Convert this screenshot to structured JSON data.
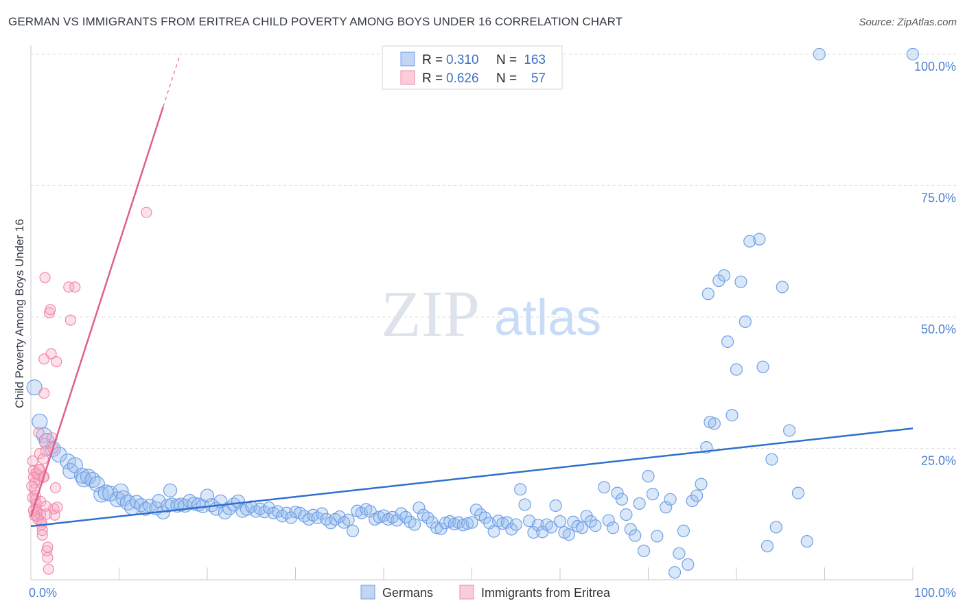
{
  "title": "GERMAN VS IMMIGRANTS FROM ERITREA CHILD POVERTY AMONG BOYS UNDER 16 CORRELATION CHART",
  "source": "Source: ZipAtlas.com",
  "watermark": {
    "zip": "ZIP",
    "atlas": "atlas"
  },
  "colors": {
    "germans": "#6fa0e8",
    "germans_line": "#2f6fd0",
    "eritrea": "#f08aa8",
    "eritrea_line": "#e0608c",
    "tick_text": "#4a7fd0"
  },
  "legend": {
    "rows": [
      {
        "r_label": "R =",
        "r_value": "0.310",
        "n_label": "N =",
        "n_value": "163"
      },
      {
        "r_label": "R =",
        "r_value": "0.626",
        "n_label": "N =",
        "n_value": "57"
      }
    ]
  },
  "bottom_legend": [
    "Germans",
    "Immigrants from Eritrea"
  ],
  "chart_data": {
    "type": "scatter",
    "title": "GERMAN VS IMMIGRANTS FROM ERITREA CHILD POVERTY AMONG BOYS UNDER 16 CORRELATION CHART",
    "xlabel": "",
    "ylabel": "Child Poverty Among Boys Under 16",
    "xlim": [
      0,
      100
    ],
    "ylim": [
      0,
      100
    ],
    "x_tick_labels": [
      "0.0%",
      "100.0%"
    ],
    "y_tick_labels": [
      "25.0%",
      "50.0%",
      "75.0%",
      "100.0%"
    ],
    "y_ticks": [
      25,
      50,
      75,
      100
    ],
    "grid": true,
    "legend_position": "top-center",
    "series": [
      {
        "name": "Germans",
        "color": "#6fa0e8",
        "r": 0.31,
        "n": 163,
        "trend": {
          "x": [
            0,
            100
          ],
          "y": [
            10.2,
            28.8
          ]
        },
        "points": [
          [
            0.4,
            36.6
          ],
          [
            1.0,
            30.1
          ],
          [
            1.5,
            27.5
          ],
          [
            1.8,
            26.4
          ],
          [
            2.5,
            24.9
          ],
          [
            3.2,
            23.8
          ],
          [
            4.2,
            22.5
          ],
          [
            4.5,
            20.7
          ],
          [
            5.0,
            21.8
          ],
          [
            5.8,
            19.8
          ],
          [
            6.0,
            19.1
          ],
          [
            6.5,
            19.6
          ],
          [
            7.0,
            19.0
          ],
          [
            7.5,
            18.2
          ],
          [
            8.0,
            16.2
          ],
          [
            8.5,
            16.6
          ],
          [
            9.0,
            16.4
          ],
          [
            9.8,
            15.3
          ],
          [
            10.2,
            16.8
          ],
          [
            10.5,
            15.5
          ],
          [
            11.0,
            14.7
          ],
          [
            11.5,
            13.8
          ],
          [
            12.0,
            14.8
          ],
          [
            12.5,
            14.2
          ],
          [
            13.0,
            13.5
          ],
          [
            13.5,
            14.1
          ],
          [
            14.2,
            13.6
          ],
          [
            14.5,
            15.0
          ],
          [
            15.0,
            12.8
          ],
          [
            15.5,
            14.1
          ],
          [
            15.8,
            17.0
          ],
          [
            16.0,
            14.3
          ],
          [
            16.6,
            14.1
          ],
          [
            17.0,
            14.3
          ],
          [
            17.5,
            14.1
          ],
          [
            18.0,
            15.0
          ],
          [
            18.5,
            14.5
          ],
          [
            19.0,
            14.3
          ],
          [
            19.5,
            14.0
          ],
          [
            20.0,
            16.0
          ],
          [
            20.5,
            14.2
          ],
          [
            21.0,
            13.5
          ],
          [
            21.5,
            14.9
          ],
          [
            22.0,
            12.8
          ],
          [
            22.5,
            13.6
          ],
          [
            23.0,
            14.3
          ],
          [
            23.5,
            14.9
          ],
          [
            24.0,
            13.1
          ],
          [
            24.5,
            13.5
          ],
          [
            25.0,
            13.9
          ],
          [
            25.5,
            13.0
          ],
          [
            26.0,
            13.5
          ],
          [
            26.5,
            12.9
          ],
          [
            27.0,
            13.7
          ],
          [
            27.5,
            12.7
          ],
          [
            28.0,
            13.0
          ],
          [
            28.5,
            12.1
          ],
          [
            29.0,
            12.7
          ],
          [
            29.5,
            11.8
          ],
          [
            30.0,
            12.9
          ],
          [
            30.5,
            12.7
          ],
          [
            31.0,
            12.1
          ],
          [
            31.5,
            11.5
          ],
          [
            32.0,
            12.3
          ],
          [
            32.5,
            11.8
          ],
          [
            33.0,
            12.6
          ],
          [
            33.5,
            11.5
          ],
          [
            34.0,
            10.8
          ],
          [
            34.5,
            11.5
          ],
          [
            35.0,
            12.0
          ],
          [
            35.5,
            10.9
          ],
          [
            36.0,
            11.4
          ],
          [
            36.5,
            9.3
          ],
          [
            37.0,
            13.1
          ],
          [
            37.5,
            12.7
          ],
          [
            38.0,
            13.4
          ],
          [
            38.5,
            13.0
          ],
          [
            39.0,
            11.5
          ],
          [
            39.5,
            11.9
          ],
          [
            40.0,
            12.2
          ],
          [
            40.5,
            11.5
          ],
          [
            41.0,
            11.9
          ],
          [
            41.5,
            11.3
          ],
          [
            42.0,
            12.6
          ],
          [
            42.5,
            11.9
          ],
          [
            43.0,
            11.0
          ],
          [
            43.5,
            10.5
          ],
          [
            44.0,
            13.7
          ],
          [
            44.5,
            12.3
          ],
          [
            45.0,
            11.8
          ],
          [
            45.5,
            10.9
          ],
          [
            46.0,
            9.9
          ],
          [
            46.5,
            9.7
          ],
          [
            47.0,
            10.8
          ],
          [
            47.5,
            11.1
          ],
          [
            48.0,
            10.6
          ],
          [
            48.5,
            10.9
          ],
          [
            49.0,
            10.4
          ],
          [
            49.5,
            10.7
          ],
          [
            50.0,
            10.9
          ],
          [
            50.5,
            13.3
          ],
          [
            51.0,
            12.4
          ],
          [
            51.5,
            11.8
          ],
          [
            52.0,
            10.8
          ],
          [
            52.5,
            9.2
          ],
          [
            53.0,
            11.2
          ],
          [
            53.5,
            10.7
          ],
          [
            54.0,
            10.9
          ],
          [
            54.5,
            9.6
          ],
          [
            55.0,
            10.5
          ],
          [
            55.5,
            17.2
          ],
          [
            56.0,
            14.3
          ],
          [
            56.5,
            11.2
          ],
          [
            57.0,
            9.0
          ],
          [
            57.5,
            10.4
          ],
          [
            58.0,
            9.1
          ],
          [
            58.5,
            10.5
          ],
          [
            59.0,
            10.0
          ],
          [
            59.5,
            14.1
          ],
          [
            60.0,
            11.1
          ],
          [
            60.5,
            9.0
          ],
          [
            61.0,
            8.6
          ],
          [
            61.5,
            11.0
          ],
          [
            62.0,
            10.2
          ],
          [
            62.5,
            9.9
          ],
          [
            63.0,
            12.1
          ],
          [
            63.5,
            11.1
          ],
          [
            64.0,
            10.3
          ],
          [
            65.0,
            17.6
          ],
          [
            65.5,
            11.3
          ],
          [
            66.0,
            9.9
          ],
          [
            66.5,
            16.5
          ],
          [
            67.0,
            15.3
          ],
          [
            67.5,
            12.4
          ],
          [
            68.0,
            9.6
          ],
          [
            68.5,
            8.4
          ],
          [
            69.0,
            14.5
          ],
          [
            69.5,
            5.5
          ],
          [
            70.0,
            19.7
          ],
          [
            70.5,
            16.3
          ],
          [
            71.0,
            8.3
          ],
          [
            72.0,
            13.8
          ],
          [
            72.5,
            15.3
          ],
          [
            73.0,
            1.4
          ],
          [
            73.5,
            5.0
          ],
          [
            74.0,
            9.3
          ],
          [
            74.5,
            2.9
          ],
          [
            75.0,
            15.0
          ],
          [
            75.5,
            16.0
          ],
          [
            76.0,
            18.2
          ],
          [
            76.6,
            25.2
          ],
          [
            77.0,
            30.0
          ],
          [
            77.5,
            29.7
          ],
          [
            78.0,
            56.9
          ],
          [
            78.6,
            57.9
          ],
          [
            79.0,
            45.3
          ],
          [
            79.5,
            31.3
          ],
          [
            80.0,
            40.0
          ],
          [
            80.5,
            56.7
          ],
          [
            81.0,
            49.1
          ],
          [
            81.5,
            64.4
          ],
          [
            82.6,
            64.8
          ],
          [
            83.0,
            40.5
          ],
          [
            83.5,
            6.4
          ],
          [
            84.0,
            22.9
          ],
          [
            84.5,
            10.0
          ],
          [
            85.2,
            55.7
          ],
          [
            86.0,
            28.4
          ],
          [
            87.0,
            16.5
          ],
          [
            88.0,
            7.3
          ],
          [
            89.4,
            100.0
          ],
          [
            100.0,
            100.0
          ],
          [
            76.8,
            54.4
          ]
        ]
      },
      {
        "name": "Immigrants from Eritrea",
        "color": "#f08aa8",
        "r": 0.626,
        "n": 57,
        "trend": {
          "x": [
            0,
            15
          ],
          "y": [
            12.0,
            90.0
          ]
        },
        "points": [
          [
            0.2,
            22.6
          ],
          [
            0.3,
            20.8
          ],
          [
            0.3,
            19.5
          ],
          [
            0.4,
            18.4
          ],
          [
            0.4,
            17.2
          ],
          [
            0.5,
            16.0
          ],
          [
            0.5,
            15.2
          ],
          [
            0.6,
            14.5
          ],
          [
            0.6,
            13.5
          ],
          [
            0.7,
            12.8
          ],
          [
            0.7,
            12.0
          ],
          [
            0.8,
            11.5
          ],
          [
            0.8,
            20.0
          ],
          [
            0.9,
            19.1
          ],
          [
            0.9,
            28.0
          ],
          [
            1.0,
            24.0
          ],
          [
            1.0,
            21.0
          ],
          [
            1.1,
            14.9
          ],
          [
            1.1,
            12.4
          ],
          [
            1.2,
            11.0
          ],
          [
            1.2,
            10.5
          ],
          [
            1.3,
            9.4
          ],
          [
            1.3,
            8.5
          ],
          [
            1.4,
            23.0
          ],
          [
            1.4,
            19.5
          ],
          [
            1.5,
            42.0
          ],
          [
            1.5,
            35.5
          ],
          [
            1.6,
            57.5
          ],
          [
            1.6,
            26.0
          ],
          [
            1.7,
            24.5
          ],
          [
            1.7,
            14.0
          ],
          [
            1.8,
            12.5
          ],
          [
            1.8,
            5.5
          ],
          [
            1.9,
            6.2
          ],
          [
            1.9,
            4.2
          ],
          [
            2.0,
            2.0
          ],
          [
            2.1,
            50.8
          ],
          [
            2.2,
            51.4
          ],
          [
            2.3,
            43.0
          ],
          [
            2.4,
            27.0
          ],
          [
            2.5,
            25.0
          ],
          [
            2.6,
            13.5
          ],
          [
            2.7,
            12.3
          ],
          [
            2.8,
            17.5
          ],
          [
            2.9,
            41.5
          ],
          [
            3.0,
            13.8
          ],
          [
            4.3,
            55.7
          ],
          [
            4.5,
            49.4
          ],
          [
            5.0,
            55.7
          ],
          [
            13.1,
            69.9
          ],
          [
            0.1,
            17.8
          ],
          [
            0.2,
            15.6
          ],
          [
            0.3,
            13.2
          ],
          [
            0.4,
            12.3
          ],
          [
            0.6,
            20.3
          ],
          [
            0.9,
            21.0
          ],
          [
            1.5,
            19.6
          ]
        ]
      }
    ]
  }
}
